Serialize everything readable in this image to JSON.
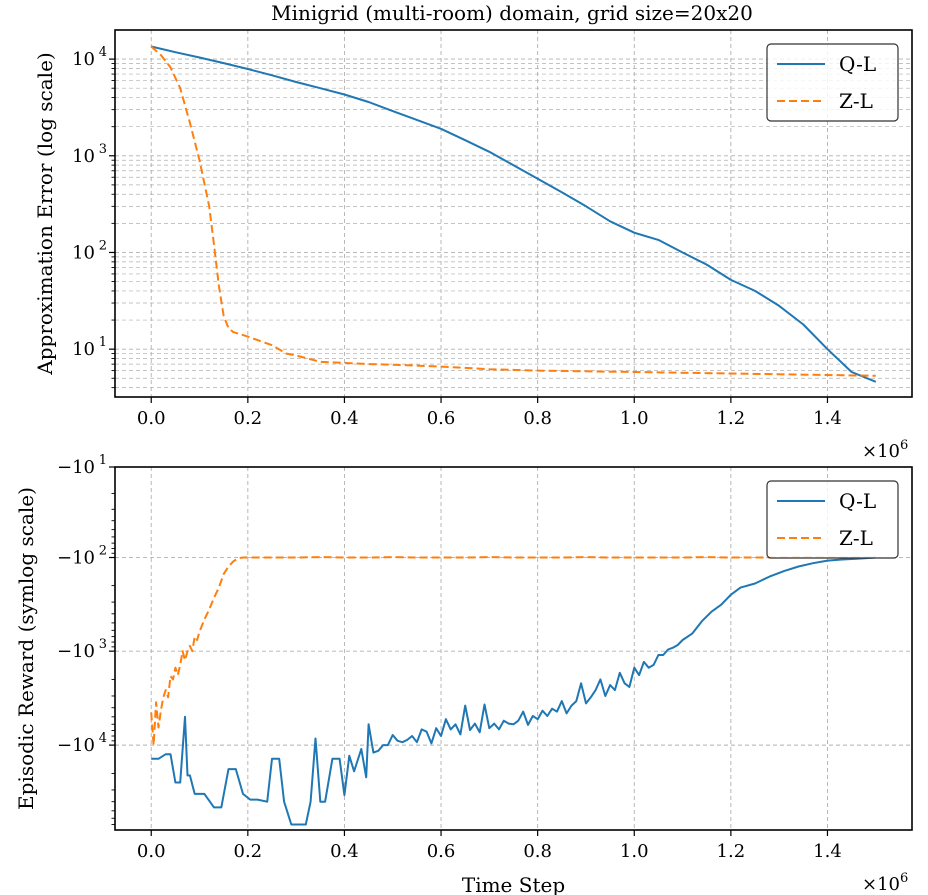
{
  "colors": {
    "ql": "#1f77b4",
    "zl": "#ff7f0e"
  },
  "chart_data": [
    {
      "type": "line",
      "title": "Minigrid (multi-room) domain, grid size=20x20",
      "xlabel": "",
      "ylabel": "Approximation Error (log scale)",
      "yscale": "log",
      "xlim": [
        -75000,
        1575000
      ],
      "ylim": [
        3.2,
        20000
      ],
      "x_ticks": [
        0,
        200000,
        400000,
        600000,
        800000,
        1000000,
        1200000,
        1400000
      ],
      "x_tick_labels": [
        "0.0",
        "0.2",
        "0.4",
        "0.6",
        "0.8",
        "1.0",
        "1.2",
        "1.4"
      ],
      "x_offset_label": "×10",
      "x_offset_exp": "6",
      "y_ticks": [
        10,
        100,
        1000,
        10000
      ],
      "y_tick_labels": [
        {
          "base": "10",
          "exp": "1"
        },
        {
          "base": "10",
          "exp": "2"
        },
        {
          "base": "10",
          "exp": "3"
        },
        {
          "base": "10",
          "exp": "4"
        }
      ],
      "grid": true,
      "legend": "top-right",
      "series": [
        {
          "name": "Q-L",
          "style": "solid",
          "x": [
            0,
            50000,
            100000,
            150000,
            200000,
            250000,
            300000,
            350000,
            400000,
            450000,
            500000,
            550000,
            600000,
            650000,
            700000,
            750000,
            800000,
            850000,
            900000,
            950000,
            1000000,
            1050000,
            1100000,
            1150000,
            1200000,
            1250000,
            1300000,
            1350000,
            1400000,
            1450000,
            1500000
          ],
          "y": [
            13500,
            11800,
            10400,
            9100,
            7900,
            6800,
            5800,
            5000,
            4300,
            3600,
            2900,
            2350,
            1900,
            1450,
            1100,
            800,
            580,
            420,
            300,
            210,
            160,
            135,
            100,
            75,
            52,
            40,
            28,
            18,
            10,
            5.8,
            4.6
          ]
        },
        {
          "name": "Z-L",
          "style": "dashed",
          "x": [
            0,
            20000,
            40000,
            60000,
            80000,
            100000,
            120000,
            130000,
            140000,
            150000,
            160000,
            170000,
            180000,
            200000,
            250000,
            280000,
            300000,
            350000,
            400000,
            450000,
            500000,
            600000,
            650000,
            700000,
            800000,
            1000000,
            1200000,
            1400000,
            1500000
          ],
          "y": [
            13500,
            11000,
            8200,
            5000,
            2200,
            900,
            300,
            120,
            45,
            22,
            16.5,
            15,
            14.5,
            13.5,
            11,
            9,
            8.6,
            7.4,
            7.2,
            7.0,
            6.9,
            6.6,
            6.4,
            6.2,
            6.0,
            5.8,
            5.6,
            5.4,
            5.3
          ]
        }
      ]
    },
    {
      "type": "line",
      "title": "",
      "xlabel": "Time Step",
      "ylabel": "Episodic Reward (symlog scale)",
      "yscale": "symlog",
      "xlim": [
        -75000,
        1575000
      ],
      "ylim": [
        -80000,
        -10
      ],
      "x_ticks": [
        0,
        200000,
        400000,
        600000,
        800000,
        1000000,
        1200000,
        1400000
      ],
      "x_tick_labels": [
        "0.0",
        "0.2",
        "0.4",
        "0.6",
        "0.8",
        "1.0",
        "1.2",
        "1.4"
      ],
      "x_offset_label": "×10",
      "x_offset_exp": "6",
      "y_ticks": [
        -10,
        -100,
        -1000,
        -10000
      ],
      "y_tick_labels": [
        {
          "base": "−10",
          "exp": "1"
        },
        {
          "base": "−10",
          "exp": "2"
        },
        {
          "base": "−10",
          "exp": "3"
        },
        {
          "base": "−10",
          "exp": "4"
        }
      ],
      "grid": true,
      "legend": "top-right",
      "series": [
        {
          "name": "Q-L",
          "style": "solid",
          "x": [
            0,
            15000,
            30000,
            40000,
            50000,
            60000,
            70000,
            75000,
            80000,
            90000,
            110000,
            130000,
            145000,
            160000,
            175000,
            190000,
            205000,
            220000,
            240000,
            250000,
            265000,
            275000,
            290000,
            305000,
            320000,
            330000,
            340000,
            350000,
            360000,
            375000,
            390000,
            400000,
            410000,
            420000,
            435000,
            445000,
            450000,
            460000,
            470000,
            480000,
            490000,
            500000,
            510000,
            520000,
            530000,
            540000,
            550000,
            560000,
            570000,
            580000,
            590000,
            600000,
            610000,
            620000,
            630000,
            640000,
            650000,
            660000,
            670000,
            680000,
            690000,
            700000,
            710000,
            720000,
            730000,
            740000,
            750000,
            760000,
            770000,
            780000,
            790000,
            800000,
            810000,
            820000,
            830000,
            840000,
            850000,
            860000,
            870000,
            880000,
            890000,
            900000,
            910000,
            920000,
            930000,
            940000,
            950000,
            960000,
            970000,
            980000,
            990000,
            1000000,
            1010000,
            1020000,
            1030000,
            1040000,
            1050000,
            1060000,
            1070000,
            1080000,
            1090000,
            1100000,
            1120000,
            1140000,
            1160000,
            1180000,
            1200000,
            1220000,
            1250000,
            1280000,
            1310000,
            1340000,
            1370000,
            1400000,
            1430000,
            1460000,
            1490000,
            1500000
          ],
          "y": [
            -14000,
            -14000,
            -12500,
            -12500,
            -25000,
            -25000,
            -5000,
            -21000,
            -21000,
            -33000,
            -33000,
            -46000,
            -46000,
            -18000,
            -18000,
            -33000,
            -38000,
            -38000,
            -40000,
            -14000,
            -14000,
            -40000,
            -70000,
            -70000,
            -70000,
            -40000,
            -8500,
            -40000,
            -40000,
            -14000,
            -14000,
            -34000,
            -13000,
            -19000,
            -11000,
            -22000,
            -6000,
            -12000,
            -11500,
            -10000,
            -10000,
            -7800,
            -9000,
            -9300,
            -8800,
            -8000,
            -9300,
            -6800,
            -7200,
            -9600,
            -6600,
            -8000,
            -5300,
            -6800,
            -6000,
            -7700,
            -3800,
            -6900,
            -5900,
            -7300,
            -3700,
            -6600,
            -5900,
            -6800,
            -5500,
            -5900,
            -6000,
            -5500,
            -4400,
            -6100,
            -4900,
            -5300,
            -4300,
            -4900,
            -4100,
            -4400,
            -3400,
            -4600,
            -3800,
            -3400,
            -2200,
            -3600,
            -3100,
            -2600,
            -2000,
            -3000,
            -2300,
            -2600,
            -1700,
            -2200,
            -2400,
            -1500,
            -1800,
            -1300,
            -1500,
            -1400,
            -1100,
            -1100,
            -960,
            -920,
            -860,
            -760,
            -650,
            -480,
            -380,
            -320,
            -250,
            -210,
            -190,
            -160,
            -140,
            -125,
            -115,
            -108,
            -105,
            -103,
            -101,
            -100
          ]
        },
        {
          "name": "Z-L",
          "style": "dashed",
          "x": [
            0,
            5000,
            10000,
            15000,
            20000,
            25000,
            30000,
            35000,
            40000,
            45000,
            50000,
            55000,
            60000,
            65000,
            70000,
            75000,
            80000,
            85000,
            90000,
            95000,
            100000,
            110000,
            120000,
            130000,
            140000,
            150000,
            160000,
            170000,
            180000,
            190000,
            200000,
            250000,
            300000,
            350000,
            400000,
            450000,
            500000,
            550000,
            600000,
            650000,
            700000,
            750000,
            800000,
            850000,
            900000,
            950000,
            1000000,
            1050000,
            1100000,
            1150000,
            1200000,
            1250000,
            1300000,
            1350000,
            1400000,
            1450000,
            1500000
          ],
          "y": [
            -4500,
            -10000,
            -3500,
            -6500,
            -4300,
            -3100,
            -2600,
            -3100,
            -1850,
            -2000,
            -1500,
            -1800,
            -1400,
            -1000,
            -1250,
            -1000,
            -880,
            -1000,
            -700,
            -760,
            -620,
            -460,
            -360,
            -270,
            -210,
            -150,
            -125,
            -110,
            -102,
            -100,
            -100,
            -100,
            -100,
            -99,
            -100,
            -100,
            -99,
            -100,
            -100,
            -100,
            -99,
            -100,
            -100,
            -100,
            -99,
            -100,
            -100,
            -100,
            -100,
            -99,
            -100,
            -100,
            -100,
            -99,
            -100,
            -100,
            -100
          ]
        }
      ]
    }
  ]
}
